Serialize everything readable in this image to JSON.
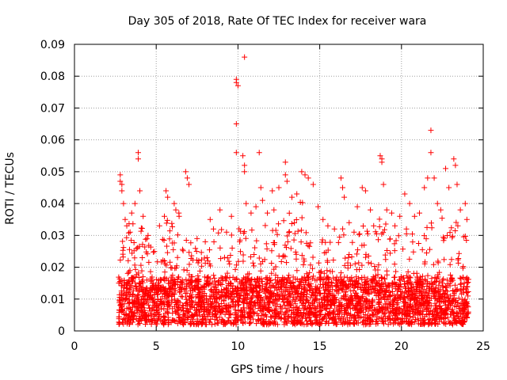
{
  "chart_data": {
    "type": "scatter",
    "title": "Day 305 of 2018, Rate Of TEC Index for receiver wara",
    "xlabel": "GPS time / hours",
    "ylabel": "ROTI / TECUs",
    "xlim": [
      0,
      25
    ],
    "ylim": [
      0,
      0.09
    ],
    "xticks": [
      0,
      5,
      10,
      15,
      20,
      25
    ],
    "xtick_labels": [
      "0",
      "5",
      "10",
      "15",
      "20",
      "25"
    ],
    "yticks": [
      0,
      0.01,
      0.02,
      0.03,
      0.04,
      0.05,
      0.06,
      0.07,
      0.08,
      0.09
    ],
    "ytick_labels": [
      "0",
      "0.01",
      "0.02",
      "0.03",
      "0.04",
      "0.05",
      "0.06",
      "0.07",
      "0.08",
      "0.09"
    ],
    "grid": true,
    "marker": "plus",
    "series_color": "#ff0000",
    "series": [
      {
        "name": "ROTI",
        "points": [
          [
            2.8,
            0.049
          ],
          [
            2.8,
            0.047
          ],
          [
            2.9,
            0.046
          ],
          [
            2.9,
            0.044
          ],
          [
            3.0,
            0.04
          ],
          [
            3.1,
            0.035
          ],
          [
            3.2,
            0.033
          ],
          [
            3.4,
            0.031
          ],
          [
            3.5,
            0.037
          ],
          [
            3.7,
            0.04
          ],
          [
            3.9,
            0.056
          ],
          [
            3.9,
            0.054
          ],
          [
            4.0,
            0.044
          ],
          [
            4.2,
            0.036
          ],
          [
            4.5,
            0.03
          ],
          [
            5.2,
            0.033
          ],
          [
            5.5,
            0.036
          ],
          [
            5.6,
            0.044
          ],
          [
            5.7,
            0.042
          ],
          [
            6.1,
            0.04
          ],
          [
            6.2,
            0.038
          ],
          [
            6.4,
            0.036
          ],
          [
            6.8,
            0.05
          ],
          [
            6.9,
            0.048
          ],
          [
            7.0,
            0.046
          ],
          [
            7.5,
            0.029
          ],
          [
            8.0,
            0.028
          ],
          [
            8.3,
            0.035
          ],
          [
            8.5,
            0.032
          ],
          [
            8.9,
            0.038
          ],
          [
            9.3,
            0.031
          ],
          [
            9.6,
            0.036
          ],
          [
            9.9,
            0.079
          ],
          [
            9.9,
            0.078
          ],
          [
            10.0,
            0.077
          ],
          [
            9.9,
            0.065
          ],
          [
            9.9,
            0.056
          ],
          [
            10.4,
            0.086
          ],
          [
            10.3,
            0.055
          ],
          [
            10.4,
            0.052
          ],
          [
            10.4,
            0.05
          ],
          [
            10.5,
            0.04
          ],
          [
            10.8,
            0.037
          ],
          [
            11.1,
            0.039
          ],
          [
            11.3,
            0.056
          ],
          [
            11.4,
            0.045
          ],
          [
            11.5,
            0.041
          ],
          [
            11.8,
            0.037
          ],
          [
            12.1,
            0.044
          ],
          [
            12.2,
            0.038
          ],
          [
            12.5,
            0.045
          ],
          [
            12.9,
            0.053
          ],
          [
            12.9,
            0.049
          ],
          [
            13.0,
            0.047
          ],
          [
            13.3,
            0.042
          ],
          [
            13.6,
            0.043
          ],
          [
            13.9,
            0.05
          ],
          [
            14.1,
            0.049
          ],
          [
            14.3,
            0.048
          ],
          [
            14.6,
            0.046
          ],
          [
            14.9,
            0.039
          ],
          [
            15.2,
            0.035
          ],
          [
            15.5,
            0.033
          ],
          [
            15.9,
            0.032
          ],
          [
            16.3,
            0.048
          ],
          [
            16.4,
            0.045
          ],
          [
            16.5,
            0.042
          ],
          [
            16.8,
            0.034
          ],
          [
            17.1,
            0.031
          ],
          [
            17.3,
            0.039
          ],
          [
            17.6,
            0.045
          ],
          [
            17.8,
            0.044
          ],
          [
            18.1,
            0.038
          ],
          [
            18.3,
            0.033
          ],
          [
            18.7,
            0.055
          ],
          [
            18.8,
            0.054
          ],
          [
            18.8,
            0.053
          ],
          [
            18.9,
            0.046
          ],
          [
            19.1,
            0.038
          ],
          [
            19.4,
            0.037
          ],
          [
            19.6,
            0.033
          ],
          [
            19.9,
            0.036
          ],
          [
            20.2,
            0.043
          ],
          [
            20.5,
            0.04
          ],
          [
            20.8,
            0.036
          ],
          [
            21.1,
            0.037
          ],
          [
            21.4,
            0.045
          ],
          [
            21.6,
            0.048
          ],
          [
            21.8,
            0.063
          ],
          [
            21.8,
            0.056
          ],
          [
            22.0,
            0.048
          ],
          [
            22.2,
            0.04
          ],
          [
            22.4,
            0.038
          ],
          [
            22.7,
            0.051
          ],
          [
            22.9,
            0.045
          ],
          [
            23.2,
            0.054
          ],
          [
            23.3,
            0.052
          ],
          [
            23.4,
            0.046
          ],
          [
            23.6,
            0.038
          ],
          [
            23.9,
            0.04
          ],
          [
            24.0,
            0.035
          ]
        ],
        "band": {
          "x_start": 2.7,
          "x_end": 24.1,
          "baseline_min": 0.002,
          "baseline_max": 0.017,
          "upper_envelope": [
            [
              2.8,
              0.03
            ],
            [
              3.5,
              0.036
            ],
            [
              4.0,
              0.038
            ],
            [
              4.5,
              0.028
            ],
            [
              5.0,
              0.025
            ],
            [
              5.5,
              0.034
            ],
            [
              6.0,
              0.036
            ],
            [
              6.5,
              0.04
            ],
            [
              7.0,
              0.03
            ],
            [
              7.5,
              0.027
            ],
            [
              8.0,
              0.024
            ],
            [
              8.5,
              0.03
            ],
            [
              9.0,
              0.032
            ],
            [
              9.5,
              0.03
            ],
            [
              10.0,
              0.035
            ],
            [
              10.5,
              0.034
            ],
            [
              11.0,
              0.032
            ],
            [
              11.5,
              0.036
            ],
            [
              12.0,
              0.032
            ],
            [
              12.5,
              0.036
            ],
            [
              13.0,
              0.037
            ],
            [
              13.5,
              0.04
            ],
            [
              14.0,
              0.042
            ],
            [
              14.5,
              0.036
            ],
            [
              15.0,
              0.03
            ],
            [
              15.5,
              0.028
            ],
            [
              16.0,
              0.034
            ],
            [
              16.5,
              0.032
            ],
            [
              17.0,
              0.028
            ],
            [
              17.5,
              0.034
            ],
            [
              18.0,
              0.033
            ],
            [
              18.5,
              0.036
            ],
            [
              19.0,
              0.034
            ],
            [
              19.5,
              0.03
            ],
            [
              20.0,
              0.03
            ],
            [
              20.5,
              0.034
            ],
            [
              21.0,
              0.032
            ],
            [
              21.5,
              0.038
            ],
            [
              22.0,
              0.036
            ],
            [
              22.5,
              0.04
            ],
            [
              23.0,
              0.038
            ],
            [
              23.5,
              0.034
            ],
            [
              24.0,
              0.03
            ]
          ]
        }
      }
    ]
  }
}
